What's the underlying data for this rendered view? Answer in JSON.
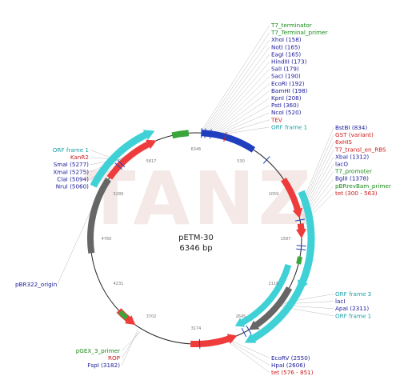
{
  "watermark": "TANZ",
  "plasmid": {
    "name": "pETM-30",
    "size_label": "6346 bp",
    "total_bp": 6346
  },
  "colors": {
    "backbone": "#222222",
    "orf": "#3fd1d6",
    "gene": "#ee3b3b",
    "origin": "#666666",
    "promoter": "#3aa63a",
    "tag": "#1f3fbf",
    "enzyme_text": "#1a1a9a",
    "feature_text": "#cc1a1a",
    "green_text": "#1a8a1a",
    "orf_text": "#1aa0a8",
    "leader": "#bbbbbb"
  },
  "ticks": [
    "530",
    "1059",
    "1587",
    "2116",
    "2645",
    "3174",
    "3702",
    "4231",
    "4760",
    "5289",
    "5817",
    "6346"
  ],
  "labels_top": [
    {
      "text": "T7_terminator",
      "kind": "green"
    },
    {
      "text": "T7_Terminal_primer",
      "kind": "green"
    },
    {
      "text": "XhoI (158)",
      "kind": "enzyme"
    },
    {
      "text": "NotI (165)",
      "kind": "enzyme"
    },
    {
      "text": "EagI (165)",
      "kind": "enzyme"
    },
    {
      "text": "HindIII (173)",
      "kind": "enzyme"
    },
    {
      "text": "SalI (179)",
      "kind": "enzyme"
    },
    {
      "text": "SacI (190)",
      "kind": "enzyme"
    },
    {
      "text": "EcoRI (192)",
      "kind": "enzyme"
    },
    {
      "text": "BamHI (198)",
      "kind": "enzyme"
    },
    {
      "text": "KpnI (208)",
      "kind": "enzyme"
    },
    {
      "text": "PstI (360)",
      "kind": "enzyme"
    },
    {
      "text": "NcoI (520)",
      "kind": "enzyme"
    },
    {
      "text": "TEV",
      "kind": "feature"
    },
    {
      "text": "ORF frame 1",
      "kind": "orf"
    }
  ],
  "labels_right": [
    {
      "text": "BstBI (834)",
      "kind": "enzyme"
    },
    {
      "text": "GST (variant)",
      "kind": "feature"
    },
    {
      "text": "6xHIS",
      "kind": "feature"
    },
    {
      "text": "T7_transl_en_RBS",
      "kind": "feature"
    },
    {
      "text": "XbaI (1312)",
      "kind": "enzyme"
    },
    {
      "text": "lacO",
      "kind": "enzyme"
    },
    {
      "text": "T7_promoter",
      "kind": "green"
    },
    {
      "text": "BglII (1378)",
      "kind": "enzyme"
    },
    {
      "text": "pBRrevBam_primer",
      "kind": "green"
    },
    {
      "text": "tet (300 - 563)",
      "kind": "feature"
    }
  ],
  "labels_left": [
    {
      "text": "ORF frame 1",
      "kind": "orf"
    },
    {
      "text": "KanR2",
      "kind": "feature"
    },
    {
      "text": "SmaI (5277)",
      "kind": "enzyme"
    },
    {
      "text": "XmaI (5275)",
      "kind": "enzyme"
    },
    {
      "text": "ClaI (5094)",
      "kind": "enzyme"
    },
    {
      "text": "NruI (5060)",
      "kind": "enzyme"
    }
  ],
  "label_origin": {
    "text": "pBR322_origin",
    "kind": "enzyme"
  },
  "labels_lower_right": [
    {
      "text": "ORF frame 3",
      "kind": "orf"
    },
    {
      "text": "lacI",
      "kind": "enzyme"
    },
    {
      "text": "ApaI (2311)",
      "kind": "enzyme"
    },
    {
      "text": "ORF frame 1",
      "kind": "orf"
    }
  ],
  "labels_bottom_right": [
    {
      "text": "EcoRV (2550)",
      "kind": "enzyme"
    },
    {
      "text": "HpaI (2606)",
      "kind": "enzyme"
    },
    {
      "text": "tet (576 - 851)",
      "kind": "feature"
    }
  ],
  "labels_bottom_left": [
    {
      "text": "pGEX_3_primer",
      "kind": "green"
    },
    {
      "text": "ROP",
      "kind": "feature"
    },
    {
      "text": "FspI (3182)",
      "kind": "enzyme"
    }
  ]
}
